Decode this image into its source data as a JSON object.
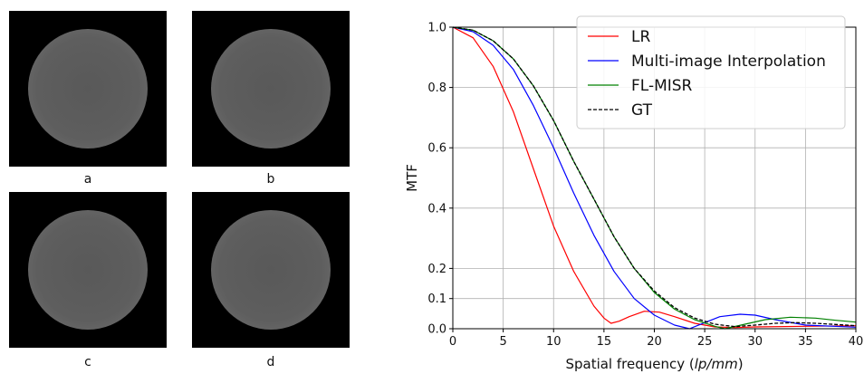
{
  "panels": [
    {
      "label": "a"
    },
    {
      "label": "b"
    },
    {
      "label": "c"
    },
    {
      "label": "d"
    }
  ],
  "colors": {
    "panel_bg": "#000000",
    "disc_center": "#5a5a5a",
    "disc_edge": "#7a7a7a"
  },
  "chart_data": {
    "type": "line",
    "title": "",
    "xlabel_prefix": "Spatial frequency (",
    "xlabel_italic": "lp/mm",
    "xlabel_suffix": ")",
    "ylabel": "MTF",
    "xlim": [
      0,
      40
    ],
    "ylim": [
      0,
      1.0
    ],
    "xticks": [
      0,
      5,
      10,
      15,
      20,
      25,
      30,
      35,
      40
    ],
    "yticks": [
      0.0,
      0.1,
      0.2,
      0.4,
      0.6,
      0.8,
      1.0
    ],
    "ytick_labels": [
      "0.0",
      "0.1",
      "0.2",
      "0.4",
      "0.6",
      "0.8",
      "1.0"
    ],
    "grid": true,
    "legend_position": "top-right",
    "series": [
      {
        "name": "LR",
        "color": "#ff0000",
        "dash": "",
        "x": [
          0,
          2,
          4,
          6,
          8,
          10,
          12,
          14,
          15,
          15.7,
          16.5,
          17.5,
          19,
          20.5,
          22,
          24,
          26,
          28,
          30,
          35,
          40
        ],
        "y": [
          1.0,
          0.965,
          0.87,
          0.72,
          0.53,
          0.34,
          0.19,
          0.075,
          0.035,
          0.018,
          0.025,
          0.04,
          0.058,
          0.055,
          0.04,
          0.018,
          0.006,
          0.004,
          0.006,
          0.008,
          0.01
        ]
      },
      {
        "name": "Multi-image Interpolation",
        "color": "#0000ff",
        "dash": "",
        "x": [
          0,
          2,
          4,
          6,
          8,
          10,
          12,
          14,
          16,
          18,
          20,
          22,
          23.5,
          25,
          26.5,
          28.5,
          30,
          32,
          35,
          40
        ],
        "y": [
          1.0,
          0.985,
          0.94,
          0.86,
          0.74,
          0.6,
          0.45,
          0.31,
          0.19,
          0.1,
          0.045,
          0.012,
          0.0,
          0.02,
          0.04,
          0.048,
          0.045,
          0.03,
          0.012,
          0.005
        ]
      },
      {
        "name": "FL-MISR",
        "color": "#008000",
        "dash": "",
        "x": [
          0,
          2,
          4,
          6,
          8,
          10,
          12,
          14,
          16,
          18,
          20,
          22,
          24,
          26,
          27,
          29,
          31,
          33.5,
          36,
          38,
          40
        ],
        "y": [
          1.0,
          0.99,
          0.955,
          0.895,
          0.805,
          0.69,
          0.555,
          0.43,
          0.305,
          0.2,
          0.12,
          0.065,
          0.03,
          0.008,
          0.0,
          0.015,
          0.03,
          0.038,
          0.035,
          0.028,
          0.022
        ]
      },
      {
        "name": "GT",
        "color": "#000000",
        "dash": "4,2",
        "x": [
          0,
          2,
          4,
          6,
          8,
          10,
          12,
          14,
          16,
          18,
          20,
          22,
          24,
          26,
          28,
          30,
          32,
          34,
          36,
          38,
          40
        ],
        "y": [
          1.0,
          0.99,
          0.955,
          0.895,
          0.805,
          0.69,
          0.555,
          0.43,
          0.305,
          0.2,
          0.125,
          0.07,
          0.035,
          0.015,
          0.007,
          0.012,
          0.018,
          0.02,
          0.018,
          0.014,
          0.01
        ]
      }
    ]
  }
}
